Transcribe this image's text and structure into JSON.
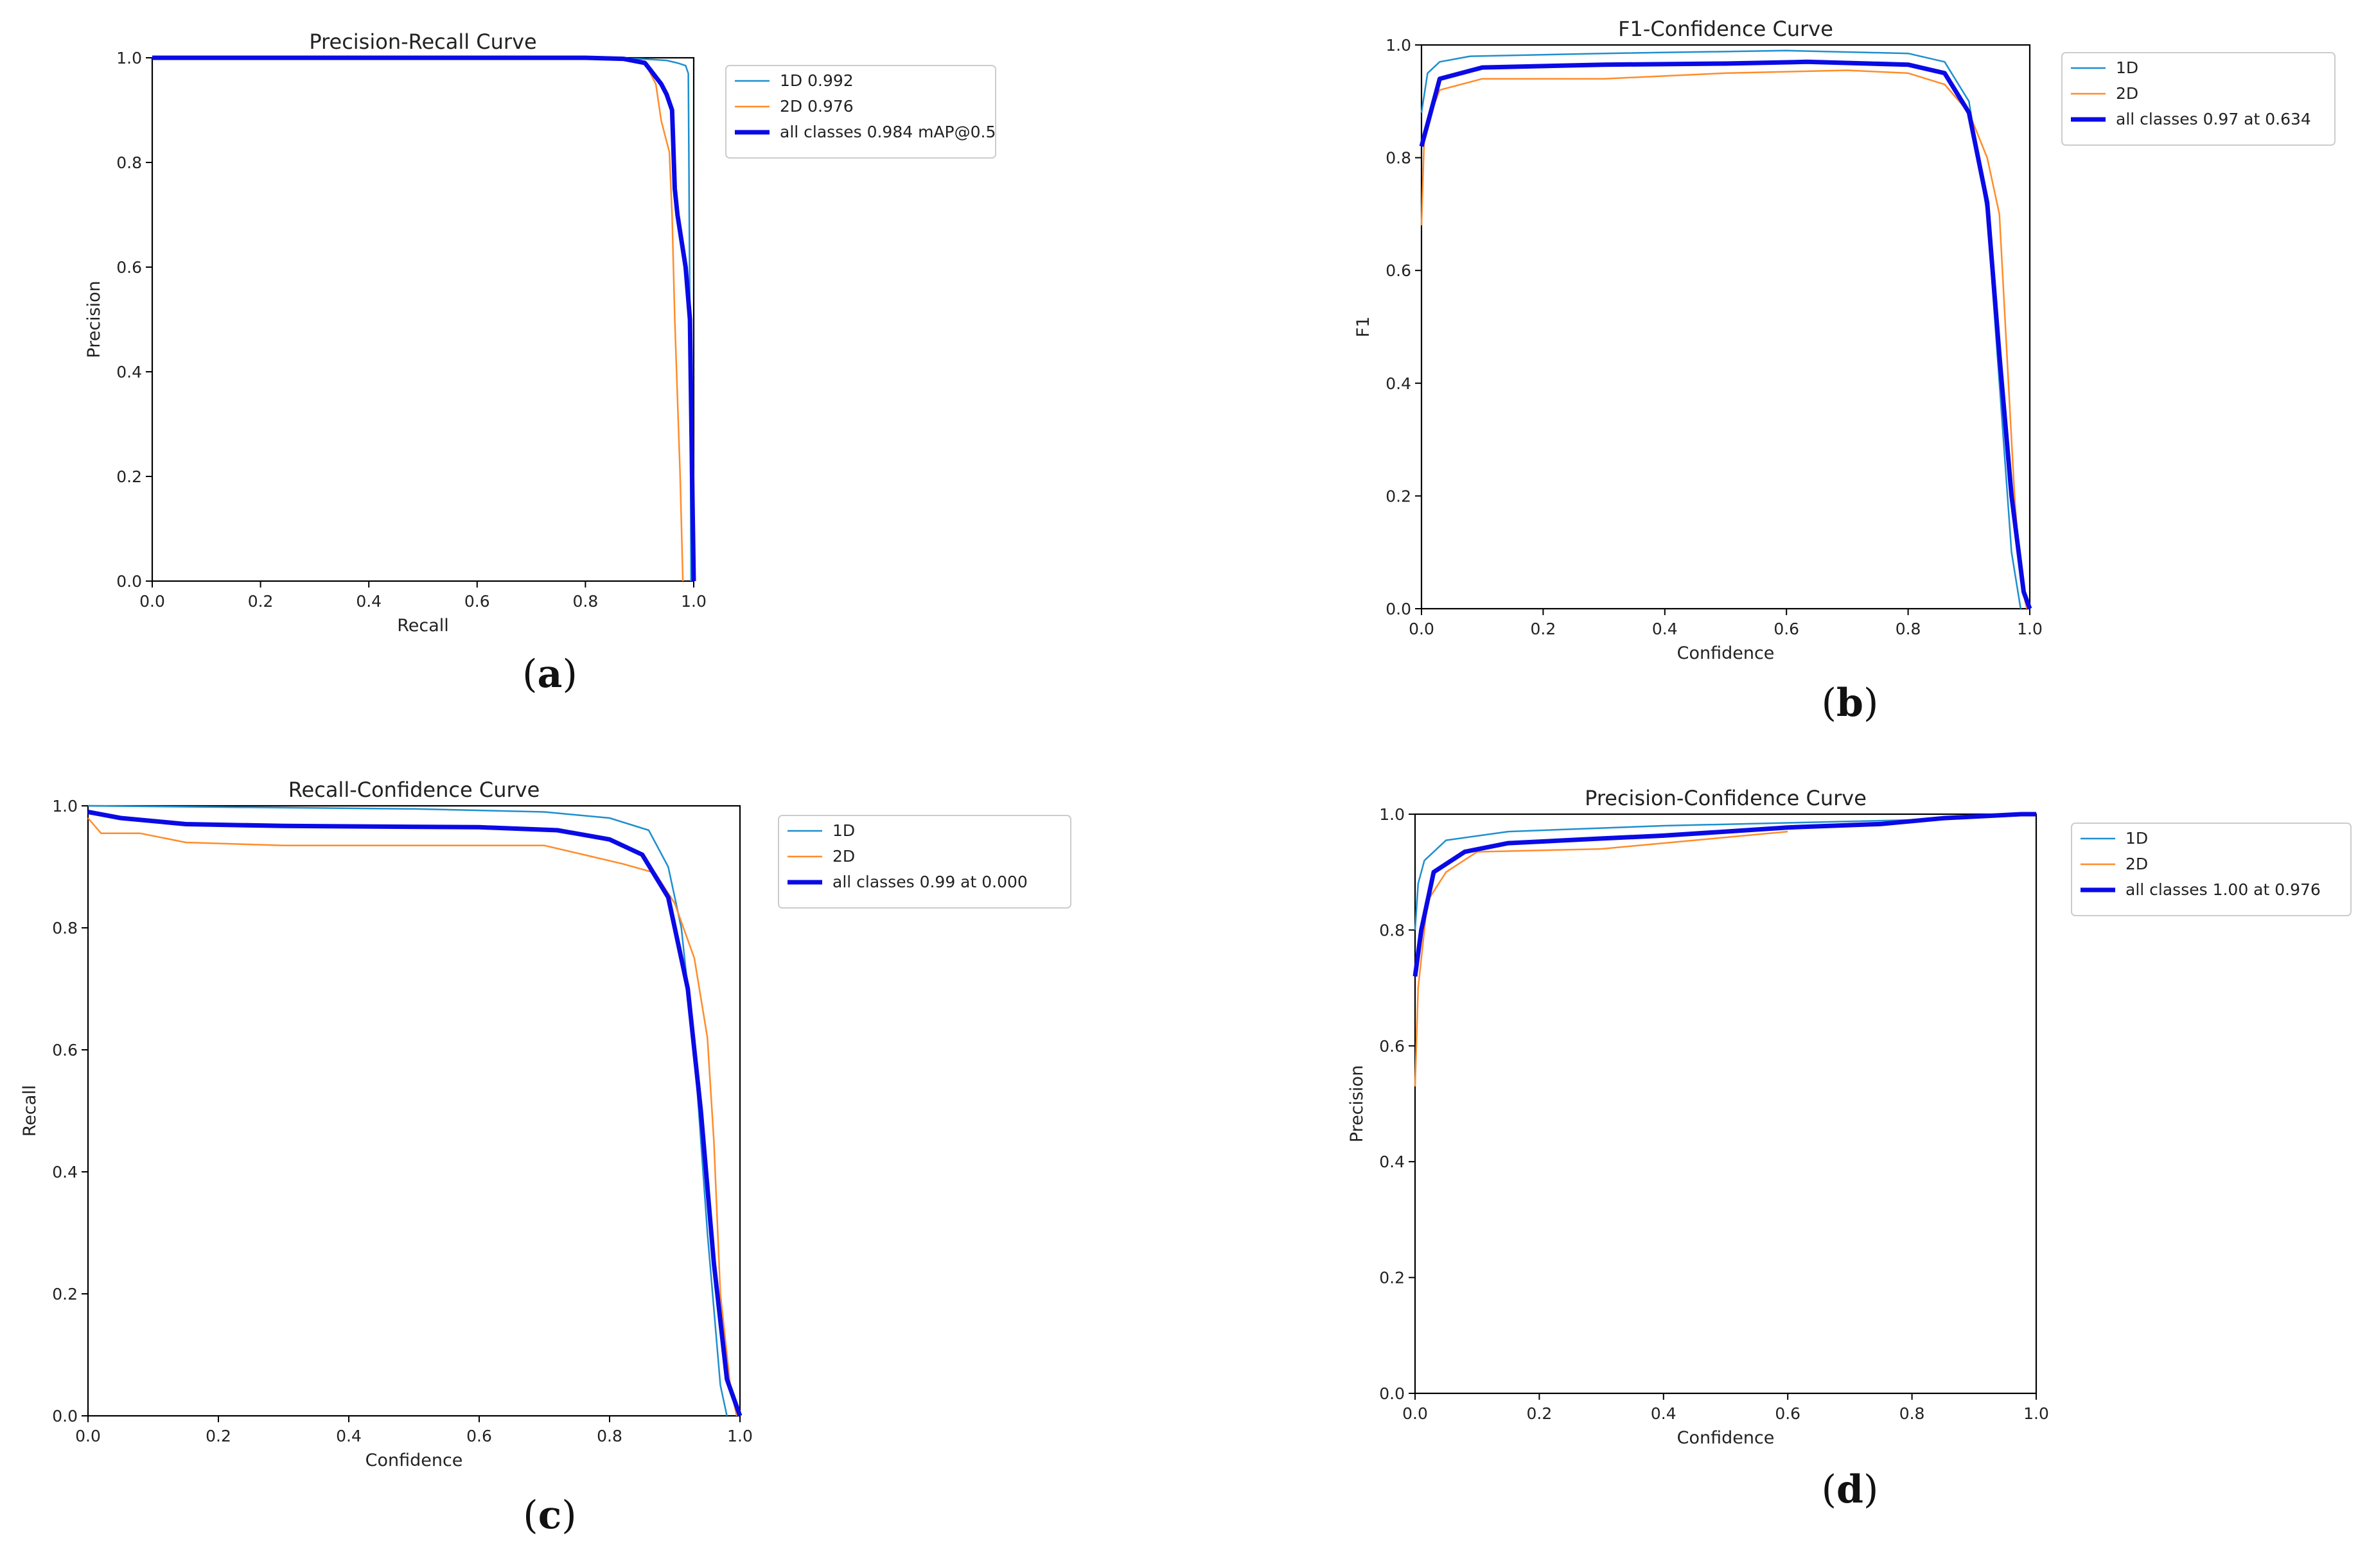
{
  "colors": {
    "series_1d": "#1f8fcf",
    "series_2d": "#ff8c2b",
    "series_all": "#0a0ae6",
    "axis": "#000000"
  },
  "chart_data": [
    {
      "id": "a",
      "type": "line",
      "caption": "(a)",
      "title": "Precision-Recall Curve",
      "xlabel": "Recall",
      "ylabel": "Precision",
      "xlim": [
        0,
        1
      ],
      "ylim": [
        0,
        1
      ],
      "xticks": [
        "0.0",
        "0.2",
        "0.4",
        "0.6",
        "0.8",
        "1.0"
      ],
      "yticks": [
        "0.0",
        "0.2",
        "0.4",
        "0.6",
        "0.8",
        "1.0"
      ],
      "grid": false,
      "legend_position": "outside-right",
      "series": [
        {
          "name": "1D 0.992",
          "role": "1d",
          "points": [
            [
              0,
              1
            ],
            [
              0.5,
              1
            ],
            [
              0.8,
              1
            ],
            [
              0.9,
              0.998
            ],
            [
              0.95,
              0.995
            ],
            [
              0.97,
              0.99
            ],
            [
              0.985,
              0.985
            ],
            [
              0.99,
              0.97
            ],
            [
              0.993,
              0.5
            ],
            [
              0.995,
              0.0
            ]
          ]
        },
        {
          "name": "2D 0.976",
          "role": "2d",
          "points": [
            [
              0,
              1
            ],
            [
              0.8,
              1
            ],
            [
              0.88,
              0.995
            ],
            [
              0.91,
              0.99
            ],
            [
              0.93,
              0.95
            ],
            [
              0.94,
              0.88
            ],
            [
              0.95,
              0.84
            ],
            [
              0.955,
              0.82
            ],
            [
              0.96,
              0.7
            ],
            [
              0.965,
              0.5
            ],
            [
              0.975,
              0.2
            ],
            [
              0.98,
              0.0
            ]
          ]
        },
        {
          "name": "all classes 0.984 mAP@0.5",
          "role": "all",
          "points": [
            [
              0,
              1
            ],
            [
              0.8,
              1
            ],
            [
              0.87,
              0.998
            ],
            [
              0.91,
              0.99
            ],
            [
              0.925,
              0.97
            ],
            [
              0.94,
              0.95
            ],
            [
              0.95,
              0.93
            ],
            [
              0.96,
              0.9
            ],
            [
              0.965,
              0.75
            ],
            [
              0.97,
              0.7
            ],
            [
              0.985,
              0.6
            ],
            [
              0.993,
              0.5
            ],
            [
              0.997,
              0.2
            ],
            [
              1.0,
              0.0
            ]
          ]
        }
      ]
    },
    {
      "id": "b",
      "type": "line",
      "caption": "(b)",
      "title": "F1-Confidence Curve",
      "xlabel": "Confidence",
      "ylabel": "F1",
      "xlim": [
        0,
        1
      ],
      "ylim": [
        0,
        1
      ],
      "xticks": [
        "0.0",
        "0.2",
        "0.4",
        "0.6",
        "0.8",
        "1.0"
      ],
      "yticks": [
        "0.0",
        "0.2",
        "0.4",
        "0.6",
        "0.8",
        "1.0"
      ],
      "grid": false,
      "legend_position": "outside-right",
      "series": [
        {
          "name": "1D",
          "role": "1d",
          "points": [
            [
              0,
              0.88
            ],
            [
              0.01,
              0.95
            ],
            [
              0.03,
              0.97
            ],
            [
              0.08,
              0.98
            ],
            [
              0.3,
              0.985
            ],
            [
              0.6,
              0.99
            ],
            [
              0.8,
              0.985
            ],
            [
              0.86,
              0.97
            ],
            [
              0.9,
              0.9
            ],
            [
              0.93,
              0.7
            ],
            [
              0.95,
              0.4
            ],
            [
              0.97,
              0.1
            ],
            [
              0.985,
              0.0
            ]
          ]
        },
        {
          "name": "2D",
          "role": "2d",
          "points": [
            [
              0,
              0.68
            ],
            [
              0.005,
              0.85
            ],
            [
              0.03,
              0.92
            ],
            [
              0.1,
              0.94
            ],
            [
              0.3,
              0.94
            ],
            [
              0.5,
              0.95
            ],
            [
              0.7,
              0.955
            ],
            [
              0.8,
              0.95
            ],
            [
              0.86,
              0.93
            ],
            [
              0.9,
              0.88
            ],
            [
              0.93,
              0.8
            ],
            [
              0.95,
              0.7
            ],
            [
              0.96,
              0.5
            ],
            [
              0.975,
              0.2
            ],
            [
              0.985,
              0.05
            ],
            [
              0.995,
              0.0
            ]
          ]
        },
        {
          "name": "all classes 0.97 at 0.634",
          "role": "all",
          "points": [
            [
              0,
              0.82
            ],
            [
              0.01,
              0.86
            ],
            [
              0.03,
              0.94
            ],
            [
              0.1,
              0.96
            ],
            [
              0.3,
              0.965
            ],
            [
              0.5,
              0.967
            ],
            [
              0.634,
              0.97
            ],
            [
              0.8,
              0.965
            ],
            [
              0.86,
              0.95
            ],
            [
              0.9,
              0.88
            ],
            [
              0.93,
              0.72
            ],
            [
              0.95,
              0.45
            ],
            [
              0.97,
              0.2
            ],
            [
              0.99,
              0.03
            ],
            [
              1.0,
              0.0
            ]
          ]
        }
      ]
    },
    {
      "id": "c",
      "type": "line",
      "caption": "(c)",
      "title": "Recall-Confidence Curve",
      "xlabel": "Confidence",
      "ylabel": "Recall",
      "xlim": [
        0,
        1
      ],
      "ylim": [
        0,
        1
      ],
      "xticks": [
        "0.0",
        "0.2",
        "0.4",
        "0.6",
        "0.8",
        "1.0"
      ],
      "yticks": [
        "0.0",
        "0.2",
        "0.4",
        "0.6",
        "0.8",
        "1.0"
      ],
      "grid": false,
      "legend_position": "outside-right",
      "series": [
        {
          "name": "1D",
          "role": "1d",
          "points": [
            [
              0,
              1.0
            ],
            [
              0.5,
              0.995
            ],
            [
              0.7,
              0.99
            ],
            [
              0.8,
              0.98
            ],
            [
              0.86,
              0.96
            ],
            [
              0.89,
              0.9
            ],
            [
              0.91,
              0.8
            ],
            [
              0.93,
              0.6
            ],
            [
              0.95,
              0.3
            ],
            [
              0.97,
              0.05
            ],
            [
              0.98,
              0.0
            ]
          ]
        },
        {
          "name": "2D",
          "role": "2d",
          "points": [
            [
              0,
              0.98
            ],
            [
              0.02,
              0.955
            ],
            [
              0.08,
              0.955
            ],
            [
              0.15,
              0.94
            ],
            [
              0.3,
              0.935
            ],
            [
              0.5,
              0.935
            ],
            [
              0.7,
              0.935
            ],
            [
              0.76,
              0.92
            ],
            [
              0.82,
              0.905
            ],
            [
              0.87,
              0.89
            ],
            [
              0.9,
              0.84
            ],
            [
              0.93,
              0.75
            ],
            [
              0.95,
              0.62
            ],
            [
              0.96,
              0.45
            ],
            [
              0.97,
              0.2
            ],
            [
              0.985,
              0.05
            ],
            [
              0.995,
              0.0
            ]
          ]
        },
        {
          "name": "all classes 0.99 at 0.000",
          "role": "all",
          "points": [
            [
              0,
              0.99
            ],
            [
              0.05,
              0.98
            ],
            [
              0.15,
              0.97
            ],
            [
              0.3,
              0.967
            ],
            [
              0.6,
              0.965
            ],
            [
              0.72,
              0.96
            ],
            [
              0.8,
              0.945
            ],
            [
              0.85,
              0.92
            ],
            [
              0.89,
              0.85
            ],
            [
              0.92,
              0.7
            ],
            [
              0.94,
              0.5
            ],
            [
              0.96,
              0.25
            ],
            [
              0.98,
              0.06
            ],
            [
              1.0,
              0.0
            ]
          ]
        }
      ]
    },
    {
      "id": "d",
      "type": "line",
      "caption": "(d)",
      "title": "Precision-Confidence Curve",
      "xlabel": "Confidence",
      "ylabel": "Precision",
      "xlim": [
        0,
        1
      ],
      "ylim": [
        0,
        1
      ],
      "xticks": [
        "0.0",
        "0.2",
        "0.4",
        "0.6",
        "0.8",
        "1.0"
      ],
      "yticks": [
        "0.0",
        "0.2",
        "0.4",
        "0.6",
        "0.8",
        "1.0"
      ],
      "grid": false,
      "legend_position": "outside-right",
      "series": [
        {
          "name": "1D",
          "role": "1d",
          "points": [
            [
              0,
              0.8
            ],
            [
              0.005,
              0.88
            ],
            [
              0.015,
              0.92
            ],
            [
              0.05,
              0.955
            ],
            [
              0.15,
              0.97
            ],
            [
              0.4,
              0.98
            ],
            [
              0.6,
              0.985
            ],
            [
              0.8,
              0.99
            ],
            [
              1.0,
              1.0
            ]
          ]
        },
        {
          "name": "2D",
          "role": "2d",
          "points": [
            [
              0,
              0.53
            ],
            [
              0.005,
              0.7
            ],
            [
              0.02,
              0.85
            ],
            [
              0.05,
              0.9
            ],
            [
              0.1,
              0.935
            ],
            [
              0.3,
              0.94
            ],
            [
              0.4,
              0.95
            ],
            [
              0.5,
              0.96
            ],
            [
              0.6,
              0.97
            ]
          ]
        },
        {
          "name": "all classes 1.00 at 0.976",
          "role": "all",
          "points": [
            [
              0,
              0.72
            ],
            [
              0.01,
              0.8
            ],
            [
              0.03,
              0.9
            ],
            [
              0.08,
              0.935
            ],
            [
              0.15,
              0.95
            ],
            [
              0.3,
              0.958
            ],
            [
              0.4,
              0.963
            ],
            [
              0.5,
              0.97
            ],
            [
              0.6,
              0.977
            ],
            [
              0.75,
              0.983
            ],
            [
              0.85,
              0.993
            ],
            [
              0.976,
              1.0
            ],
            [
              1.0,
              1.0
            ]
          ]
        }
      ]
    }
  ]
}
